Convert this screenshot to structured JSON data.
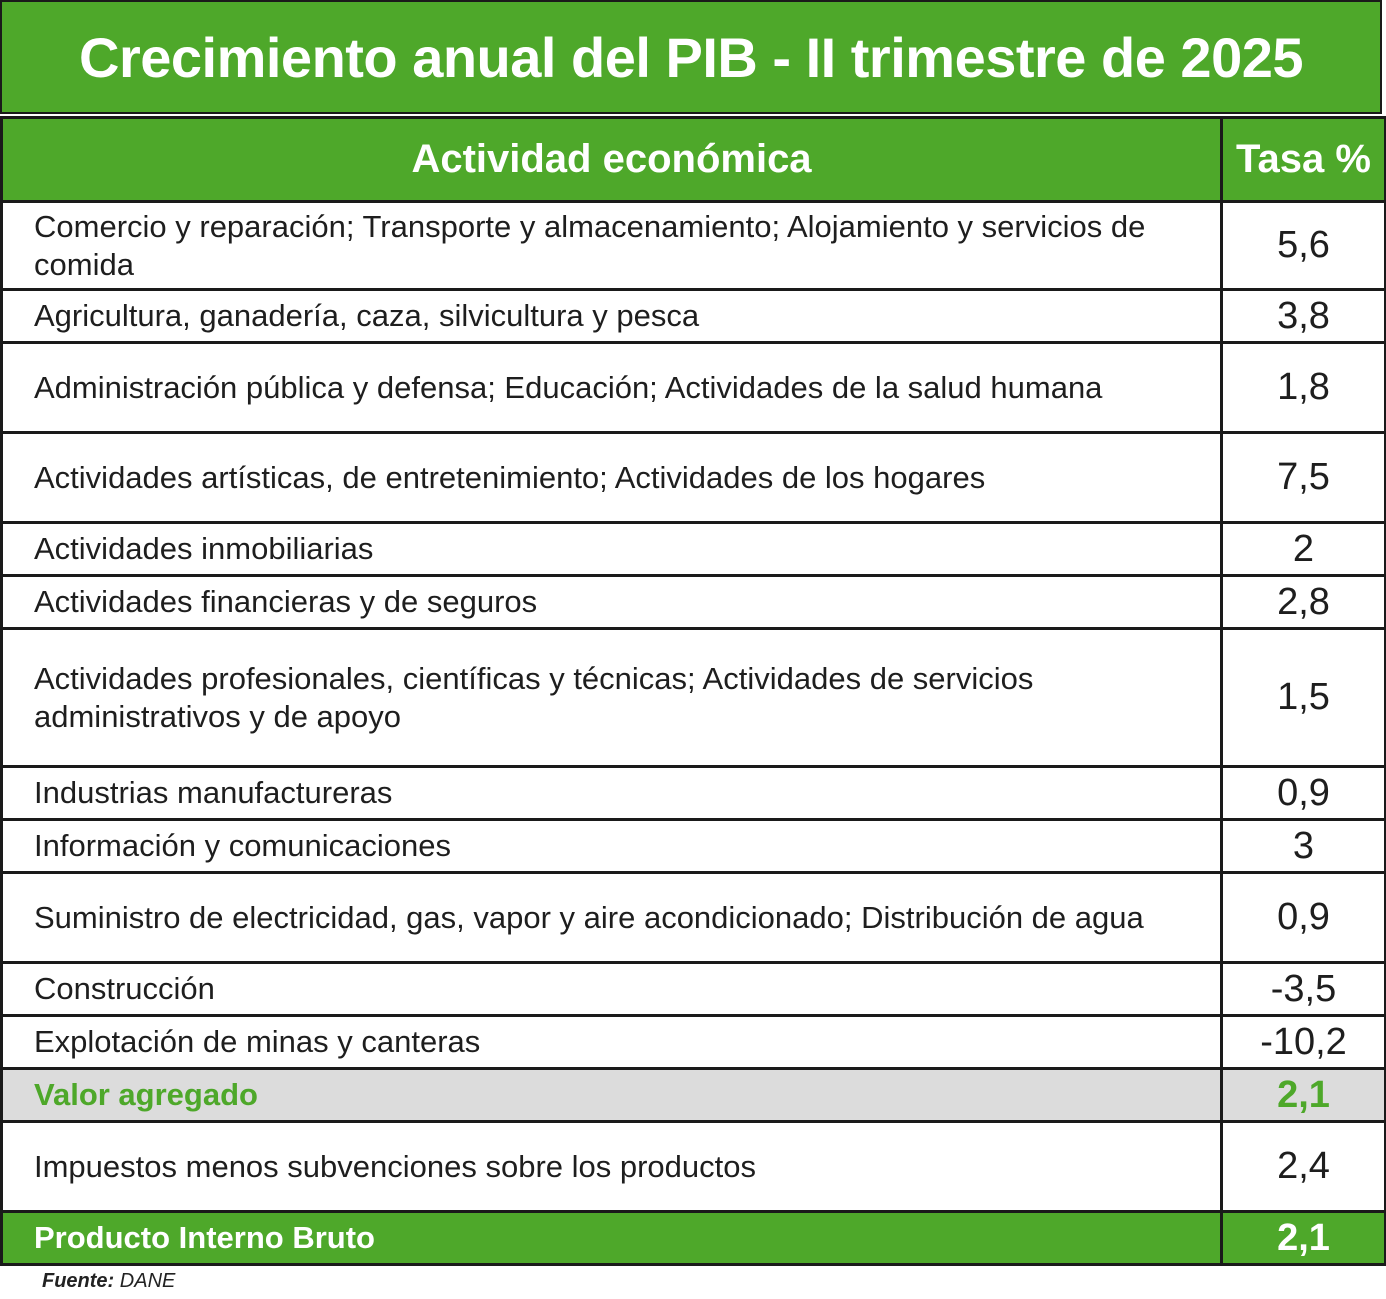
{
  "chart_data": {
    "type": "table",
    "title": "Crecimiento anual del PIB - II trimestre de 2025",
    "columns": [
      "Actividad económica",
      "Tasa %"
    ],
    "rows": [
      {
        "label": "Comercio y reparación; Transporte y almacenamiento; Alojamiento y servicios de comida",
        "value": "5,6"
      },
      {
        "label": "Agricultura, ganadería, caza, silvicultura y pesca",
        "value": "3,8"
      },
      {
        "label": "Administración pública y defensa; Educación; Actividades de la salud humana",
        "value": "1,8"
      },
      {
        "label": "Actividades artísticas, de entretenimiento; Actividades de los hogares",
        "value": "7,5"
      },
      {
        "label": "Actividades inmobiliarias",
        "value": "2"
      },
      {
        "label": "Actividades financieras y de seguros",
        "value": "2,8"
      },
      {
        "label": "Actividades profesionales, científicas y técnicas; Actividades de servicios administrativos y de apoyo",
        "value": "1,5"
      },
      {
        "label": "Industrias manufactureras",
        "value": "0,9"
      },
      {
        "label": "Información y comunicaciones",
        "value": "3"
      },
      {
        "label": "Suministro de electricidad, gas, vapor y aire acondicionado; Distribución de agua",
        "value": "0,9"
      },
      {
        "label": "Construcción",
        "value": "-3,5"
      },
      {
        "label": "Explotación de minas y canteras",
        "value": "-10,2"
      },
      {
        "label": "Valor agregado",
        "value": "2,1",
        "style": "subtotal"
      },
      {
        "label": "Impuestos menos subvenciones sobre los productos",
        "value": "2,4"
      },
      {
        "label": "Producto Interno Bruto",
        "value": "2,1",
        "style": "total"
      }
    ],
    "source_label": "Fuente:",
    "source": "DANE"
  },
  "colors": {
    "header_green": "#4ea82a",
    "subtotal_gray": "#dcdcdc",
    "text": "#1e1e1e"
  }
}
